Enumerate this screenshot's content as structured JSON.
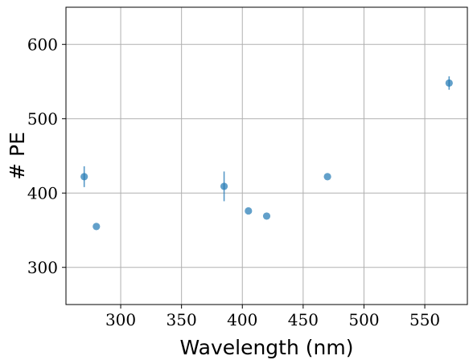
{
  "chart_data": {
    "type": "scatter",
    "title": "",
    "xlabel": "Wavelength (nm)",
    "ylabel": "# PE",
    "xlim": [
      255,
      585
    ],
    "ylim": [
      250,
      650
    ],
    "x_ticks": [
      300,
      350,
      400,
      450,
      500,
      550
    ],
    "y_ticks": [
      300,
      400,
      500,
      600
    ],
    "x_tick_labels": [
      "300",
      "350",
      "400",
      "450",
      "500",
      "550"
    ],
    "y_tick_labels": [
      "300",
      "400",
      "500",
      "600"
    ],
    "grid": true,
    "legend": "none",
    "marker_color": "#1f77b4",
    "points": [
      {
        "x": 270,
        "y": 422,
        "yerr": 14
      },
      {
        "x": 280,
        "y": 355,
        "yerr": 0
      },
      {
        "x": 385,
        "y": 409,
        "yerr": 20
      },
      {
        "x": 405,
        "y": 376,
        "yerr": 0
      },
      {
        "x": 420,
        "y": 369,
        "yerr": 0
      },
      {
        "x": 470,
        "y": 422,
        "yerr": 0
      },
      {
        "x": 570,
        "y": 548,
        "yerr": 9
      }
    ]
  }
}
